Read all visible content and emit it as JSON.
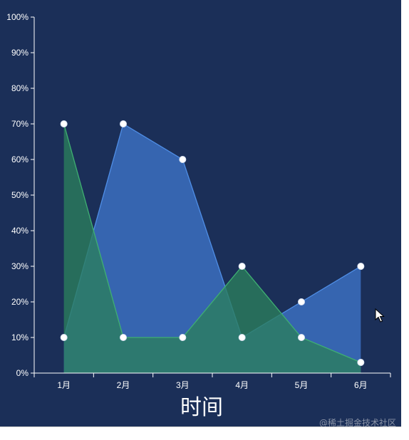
{
  "colors": {
    "background": "#1b2f58",
    "axis": "#ffffff",
    "series_blue_fill": "#3d74c9",
    "series_blue_line": "#4f8ee6",
    "series_green_fill": "#2a7f5c",
    "series_green_line": "#3faf72",
    "marker": "#ffffff"
  },
  "chart_data": {
    "type": "area",
    "categories": [
      "1月",
      "2月",
      "3月",
      "4月",
      "5月",
      "6月"
    ],
    "series": [
      {
        "values": [
          10,
          70,
          60,
          10,
          20,
          30
        ],
        "color": "#3d74c9"
      },
      {
        "values": [
          70,
          10,
          10,
          30,
          10,
          3
        ],
        "color": "#2a7f5c"
      }
    ],
    "yticks": [
      "0%",
      "10%",
      "20%",
      "30%",
      "40%",
      "50%",
      "60%",
      "70%",
      "80%",
      "90%",
      "100%"
    ],
    "ylim": [
      0,
      100
    ],
    "xlabel": "时间",
    "ylabel": "",
    "grid": false
  },
  "watermark": "@稀土掘金技术社区"
}
